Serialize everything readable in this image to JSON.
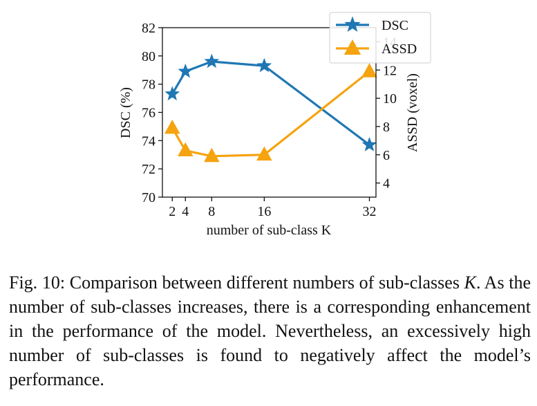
{
  "chart_data": {
    "type": "line",
    "x": [
      2,
      4,
      8,
      16,
      32
    ],
    "xlabel": "number of sub-class K",
    "xticks": [
      "2",
      "4",
      "8",
      "16",
      "32"
    ],
    "xlim": [
      0.5,
      33
    ],
    "series": [
      {
        "name": "DSC",
        "axis": "left",
        "values": [
          77.3,
          78.9,
          79.6,
          79.3,
          73.7
        ],
        "color": "#1f77b4",
        "marker": "star"
      },
      {
        "name": "ASSD",
        "axis": "right",
        "values": [
          7.9,
          6.3,
          5.9,
          6.0,
          11.9
        ],
        "color": "#f5a30f",
        "marker": "triangle"
      }
    ],
    "ylabel": "DSC (%)",
    "ylim": [
      70,
      82
    ],
    "yticks": [
      "70",
      "72",
      "74",
      "76",
      "78",
      "80",
      "82"
    ],
    "y2label": "ASSD (voxel)",
    "y2lim": [
      3,
      15
    ],
    "y2ticks": [
      "4",
      "6",
      "8",
      "10",
      "12",
      "14"
    ],
    "legend_loc": "top-right"
  },
  "caption": {
    "prefix": "Fig. 10: Comparison between different numbers of sub-classes ",
    "k": "K",
    "suffix": ". As the number of sub-classes increases, there is a corresponding enhancement in the performance of the model. Nevertheless, an excessively high number of sub-classes is found to negatively affect the model’s performance."
  }
}
